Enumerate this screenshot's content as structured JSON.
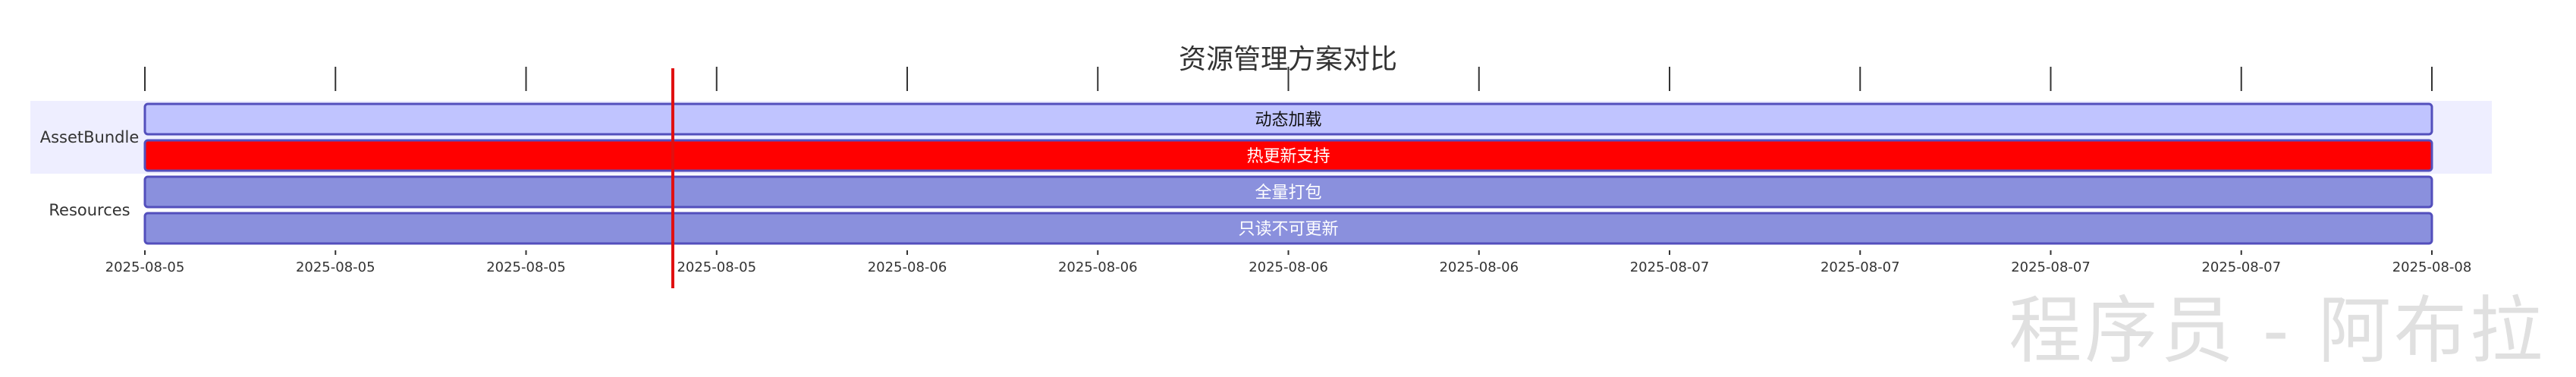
{
  "chart_data": {
    "type": "gantt",
    "title": "资源管理方案对比",
    "ticks": [
      "2025-08-05",
      "2025-08-05",
      "2025-08-05",
      "2025-08-05",
      "2025-08-06",
      "2025-08-06",
      "2025-08-06",
      "2025-08-06",
      "2025-08-07",
      "2025-08-07",
      "2025-08-07",
      "2025-08-07",
      "2025-08-08"
    ],
    "today_marker_tick": 2.77,
    "sections": [
      {
        "name": "AssetBundle",
        "tasks": [
          {
            "label": "动态加载",
            "start_tick": 0,
            "end_tick": 12,
            "color": "#c0c4ff"
          },
          {
            "label": "热更新支持",
            "start_tick": 0,
            "end_tick": 12,
            "color": "#ff0000"
          }
        ]
      },
      {
        "name": "Resources",
        "tasks": [
          {
            "label": "全量打包",
            "start_tick": 0,
            "end_tick": 12,
            "color": "#8a90dd"
          },
          {
            "label": "只读不可更新",
            "start_tick": 0,
            "end_tick": 12,
            "color": "#8a90dd"
          }
        ]
      }
    ],
    "colors": {
      "section_band": "#eeeeff",
      "bar_stroke": "#534fbc",
      "today_line": "#e01010",
      "axis": "#333333"
    }
  },
  "watermark": "程序员 - 阿布拉"
}
